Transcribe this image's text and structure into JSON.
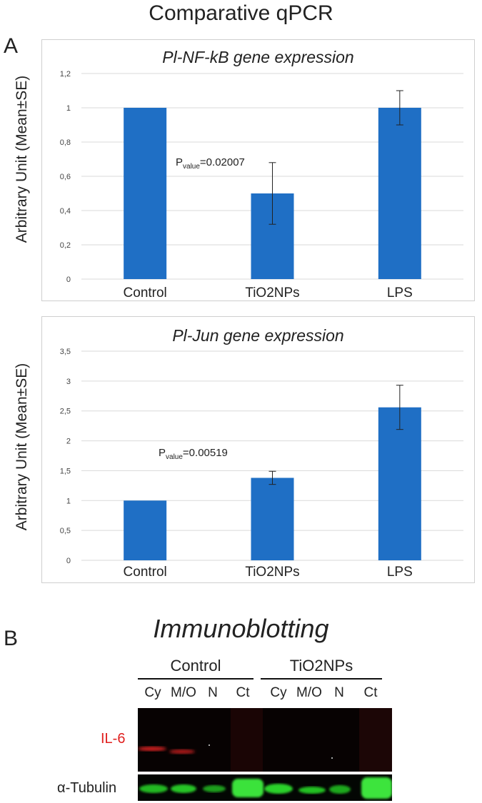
{
  "header": {
    "title": "Comparative qPCR"
  },
  "panels": {
    "a": "A",
    "b": "B"
  },
  "chart_data": [
    {
      "type": "bar",
      "title": "Pl-NF-kB gene expression",
      "ylabel": "Arbitrary Unit (Mean±SE)",
      "categories": [
        "Control",
        "TiO2NPs",
        "LPS"
      ],
      "values": [
        1.0,
        0.5,
        1.0
      ],
      "errors": [
        0.0,
        0.18,
        0.1
      ],
      "ylim": [
        0,
        1.2
      ],
      "yticks": [
        "0",
        "0,2",
        "0,4",
        "0,6",
        "0,8",
        "1",
        "1,2"
      ],
      "grid": true,
      "bar_color": "#1f6fc5",
      "annotation": {
        "prefix": "P",
        "sub": "value",
        "text": "=0.02007"
      }
    },
    {
      "type": "bar",
      "title": "Pl-Jun gene expression",
      "ylabel": "Arbitrary Unit (Mean±SE)",
      "categories": [
        "Control",
        "TiO2NPs",
        "LPS"
      ],
      "values": [
        1.0,
        1.38,
        2.56
      ],
      "errors": [
        0.0,
        0.11,
        0.37
      ],
      "ylim": [
        0,
        3.5
      ],
      "yticks": [
        "0",
        "0,5",
        "1",
        "1,5",
        "2",
        "2,5",
        "3",
        "3,5"
      ],
      "grid": true,
      "bar_color": "#1f6fc5",
      "annotation": {
        "prefix": "P",
        "sub": "value",
        "text": "=0.00519"
      }
    }
  ],
  "blot": {
    "title": "Immunoblotting",
    "groups": [
      "Control",
      "TiO2NPs"
    ],
    "lanes": [
      "Cy",
      "M/O",
      "N",
      "Ct",
      "Cy",
      "M/O",
      "N",
      "Ct"
    ],
    "rows": [
      "IL-6",
      "α-Tubulin"
    ],
    "colors": {
      "il6": "#e0201f",
      "tubulin": "#2bd12b"
    }
  }
}
